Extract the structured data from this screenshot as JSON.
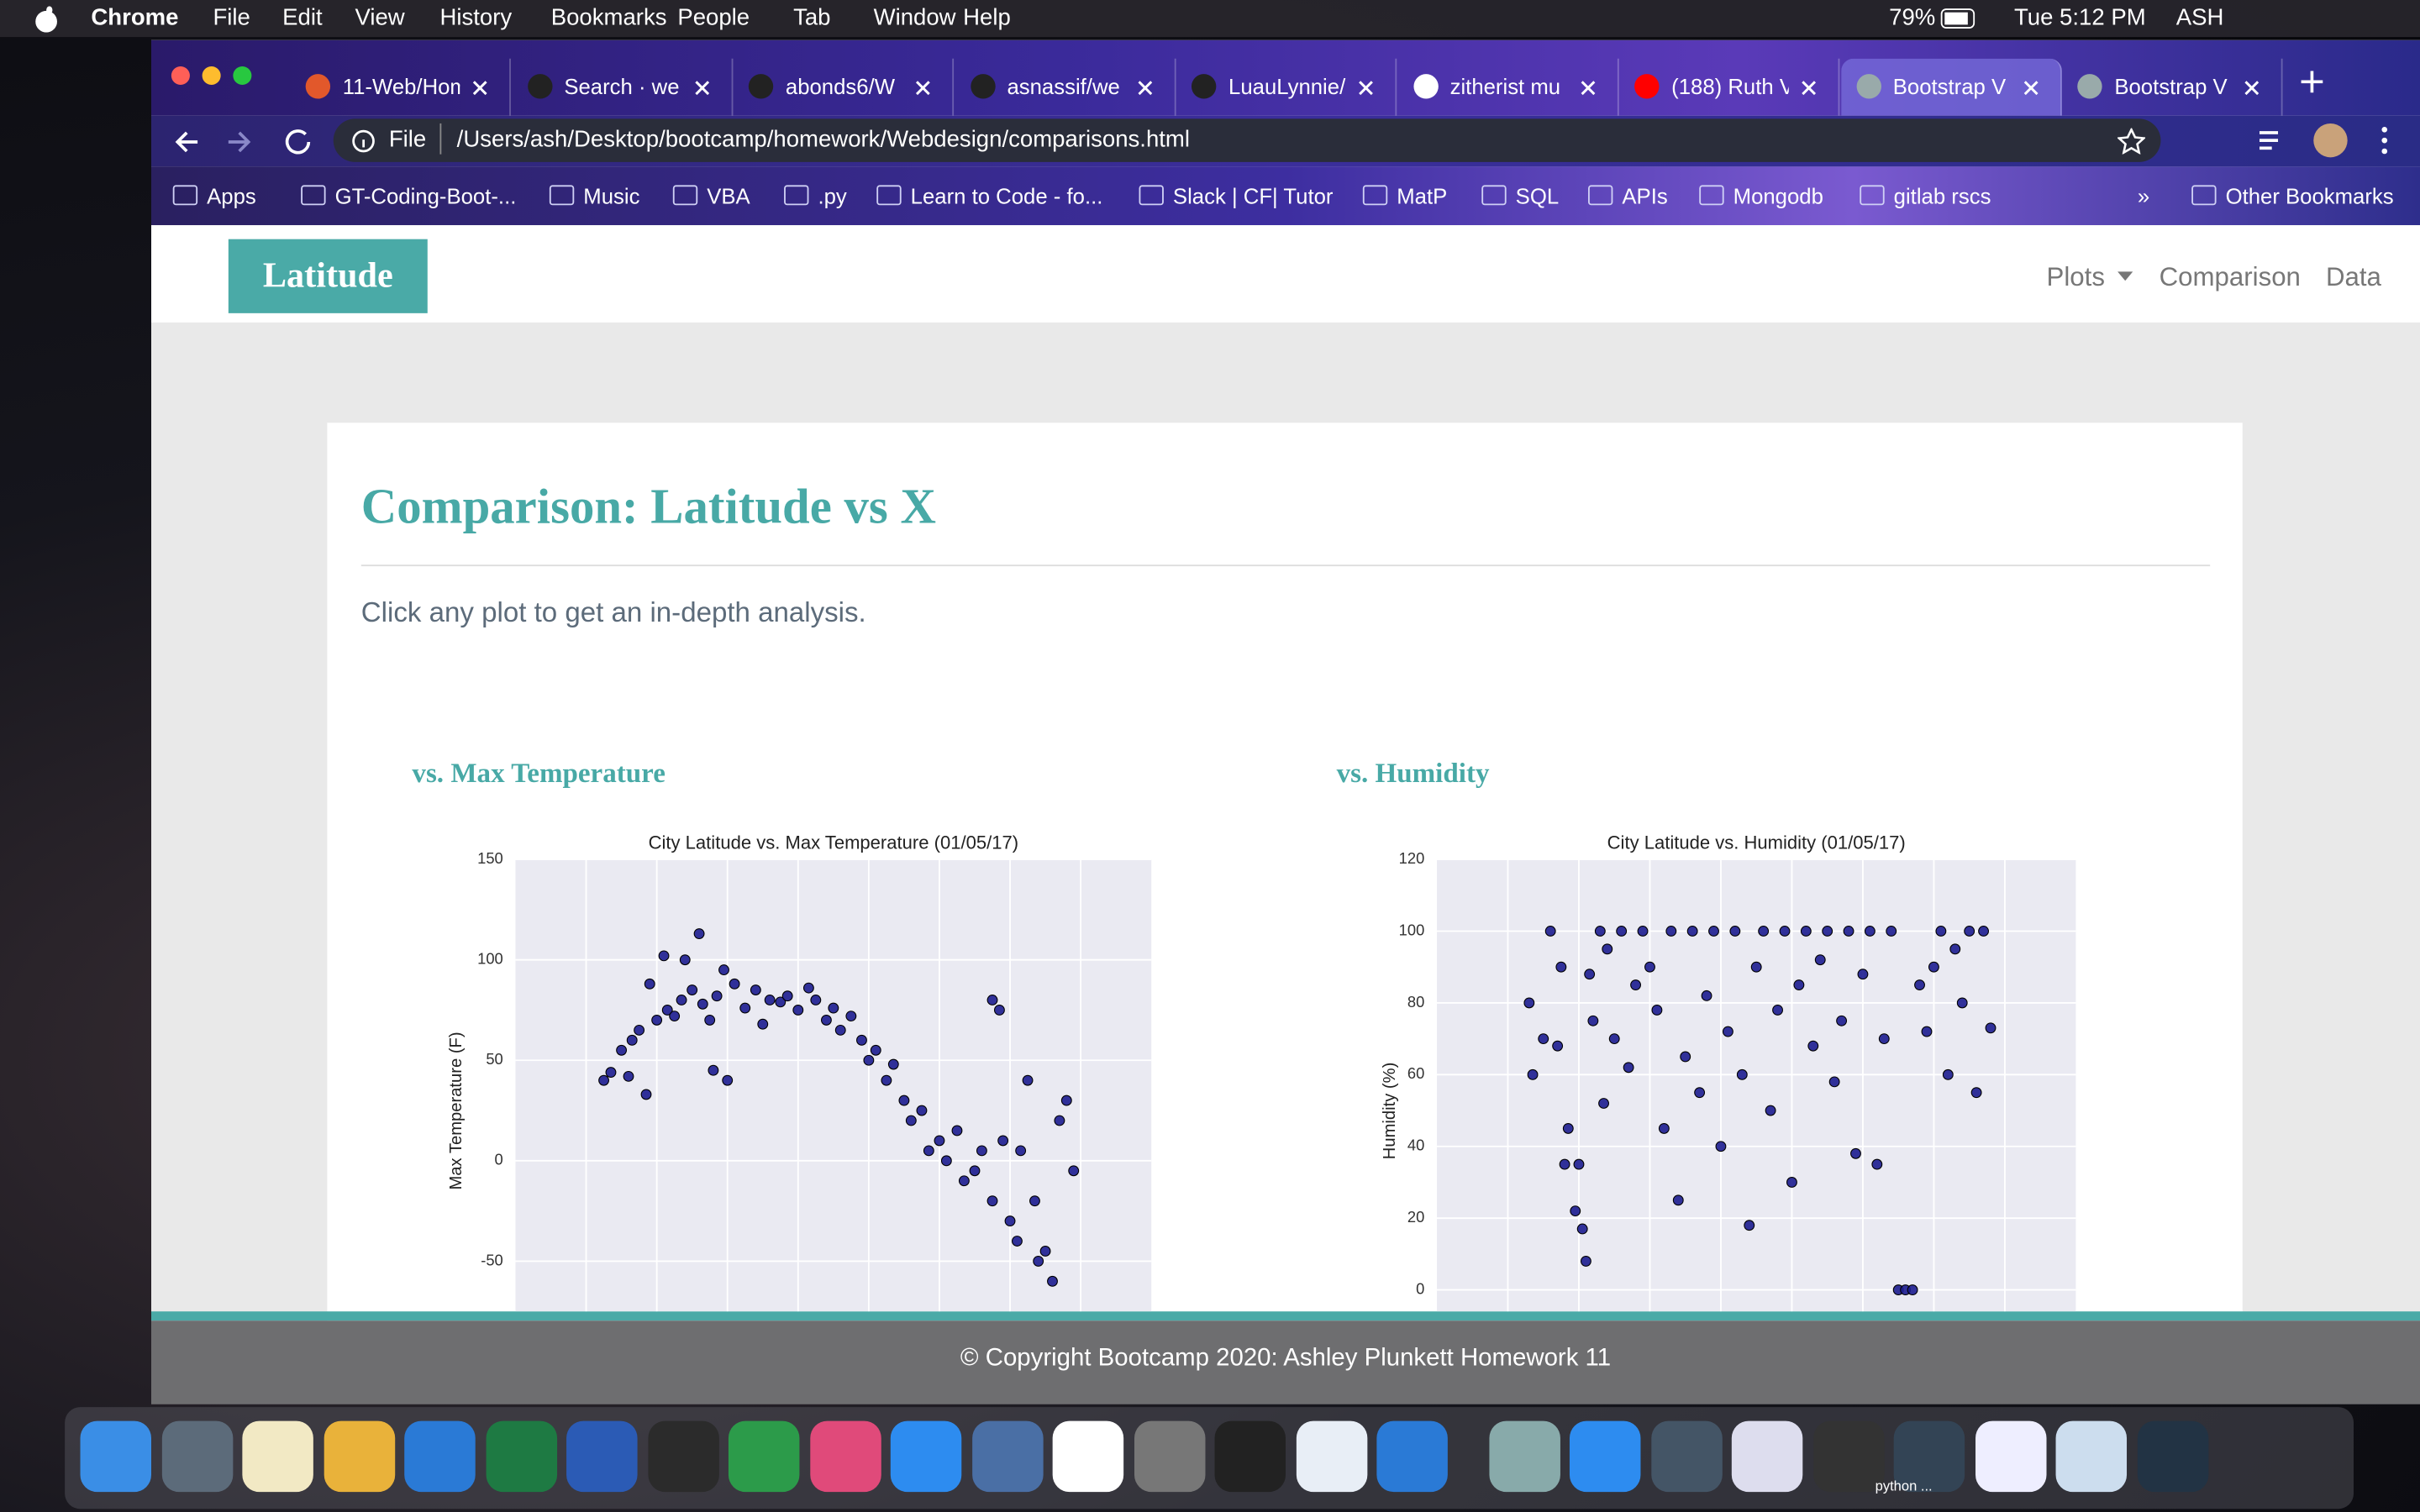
{
  "menubar": {
    "app": "Chrome",
    "menus": [
      "File",
      "Edit",
      "View",
      "History",
      "Bookmarks",
      "People",
      "Tab",
      "Window",
      "Help"
    ],
    "battery": "79%",
    "clock": "Tue 5:12 PM",
    "user": "ASH"
  },
  "tabs": [
    "11-Web/Hom",
    "Search · we",
    "abonds6/W",
    "asnassif/we",
    "LuauLynnie/",
    "zitherist mu",
    "(188) Ruth V",
    "Bootstrap V",
    "Bootstrap V"
  ],
  "address": {
    "scheme": "File",
    "url": "/Users/ash/Desktop/bootcamp/homework/Webdesign/comparisons.html"
  },
  "bookmarks": [
    "Apps",
    "GT-Coding-Boot-...",
    "Music",
    "VBA",
    ".py",
    "Learn to Code - fo...",
    "Slack | CF| Tutor",
    "MatP",
    "SQL",
    "APIs",
    "Mongodb",
    "gitlab rscs"
  ],
  "bookmarks_overflow": "»",
  "other_bookmarks": "Other Bookmarks",
  "navbar": {
    "brand": "Latitude",
    "links": [
      "Plots",
      "Comparison",
      "Data"
    ]
  },
  "content": {
    "title": "Comparison: Latitude vs X",
    "subtitle": "Click any plot to get an in-depth analysis."
  },
  "plots": [
    {
      "heading": "vs. Max Temperature",
      "chart_data": {
        "type": "scatter",
        "title": "City Latitude vs. Max Temperature (01/05/17)",
        "ylabel": "Max Temperature (F)",
        "color": "#1c1c8f",
        "grid": true,
        "xlim": [
          -80,
          100
        ],
        "xticks": [
          -60,
          -40,
          -20,
          0,
          20,
          40,
          60,
          80
        ],
        "ylim": [
          -75,
          150
        ],
        "yticks": [
          -50,
          0,
          50,
          100,
          150
        ],
        "x": [
          -55,
          -53,
          -50,
          -48,
          -47,
          -45,
          -43,
          -42,
          -40,
          -38,
          -37,
          -35,
          -33,
          -32,
          -30,
          -28,
          -27,
          -25,
          -24,
          -23,
          -21,
          -20,
          -18,
          -15,
          -12,
          -10,
          -8,
          -5,
          -3,
          0,
          3,
          5,
          8,
          10,
          12,
          15,
          18,
          20,
          22,
          25,
          27,
          30,
          32,
          35,
          37,
          40,
          42,
          45,
          47,
          50,
          52,
          55,
          55,
          57,
          58,
          60,
          62,
          63,
          65,
          67,
          68,
          70,
          72,
          74,
          76,
          78
        ],
        "y": [
          40,
          44,
          55,
          42,
          60,
          65,
          33,
          88,
          70,
          102,
          75,
          72,
          80,
          100,
          85,
          113,
          78,
          70,
          45,
          82,
          95,
          40,
          88,
          76,
          85,
          68,
          80,
          79,
          82,
          75,
          86,
          80,
          70,
          76,
          65,
          72,
          60,
          50,
          55,
          40,
          48,
          30,
          20,
          25,
          5,
          10,
          0,
          15,
          -10,
          -5,
          5,
          80,
          -20,
          75,
          10,
          -30,
          -40,
          5,
          40,
          -20,
          -50,
          -45,
          -60,
          20,
          30,
          -5
        ]
      }
    },
    {
      "heading": "vs. Humidity",
      "chart_data": {
        "type": "scatter",
        "title": "City Latitude vs. Humidity (01/05/17)",
        "ylabel": "Humidity (%)",
        "color": "#1c1c8f",
        "grid": true,
        "xlim": [
          -80,
          100
        ],
        "xticks": [
          -60,
          -40,
          -20,
          0,
          20,
          40,
          60,
          80
        ],
        "ylim": [
          -6,
          120
        ],
        "yticks": [
          0,
          20,
          40,
          60,
          80,
          100,
          120
        ],
        "x": [
          -54,
          -53,
          -50,
          -48,
          -46,
          -45,
          -44,
          -43,
          -41,
          -40,
          -39,
          -38,
          -37,
          -36,
          -34,
          -33,
          -32,
          -30,
          -28,
          -26,
          -24,
          -22,
          -20,
          -18,
          -16,
          -14,
          -12,
          -10,
          -8,
          -6,
          -4,
          -2,
          0,
          2,
          4,
          6,
          8,
          10,
          12,
          14,
          16,
          18,
          20,
          22,
          24,
          26,
          28,
          30,
          32,
          34,
          36,
          38,
          40,
          42,
          44,
          46,
          48,
          50,
          52,
          54,
          56,
          58,
          60,
          62,
          64,
          66,
          68,
          70,
          72,
          74,
          76
        ],
        "y": [
          80,
          60,
          70,
          100,
          68,
          90,
          35,
          45,
          22,
          35,
          17,
          8,
          88,
          75,
          100,
          52,
          95,
          70,
          100,
          62,
          85,
          100,
          90,
          78,
          45,
          100,
          25,
          65,
          100,
          55,
          82,
          100,
          40,
          72,
          100,
          60,
          18,
          90,
          100,
          50,
          78,
          100,
          30,
          85,
          100,
          68,
          92,
          100,
          58,
          75,
          100,
          38,
          88,
          100,
          35,
          70,
          100,
          0,
          0,
          0,
          85,
          72,
          90,
          100,
          60,
          95,
          80,
          100,
          55,
          100,
          73
        ]
      }
    }
  ],
  "footer": "© Copyright Bootcamp 2020: Ashley Plunkett Homework 11",
  "dock": {
    "label": "python ..."
  }
}
